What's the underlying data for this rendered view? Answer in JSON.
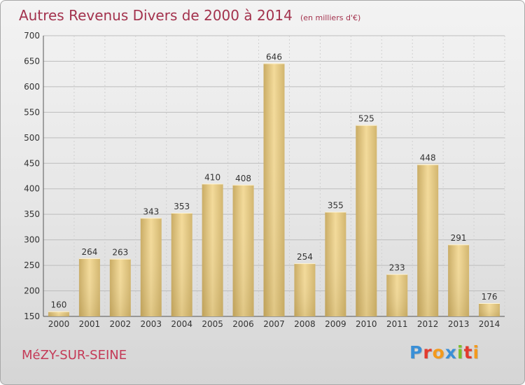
{
  "title": "Autres Revenus Divers de 2000 à 2014",
  "subtitle": "(en milliers d'€)",
  "commune": "MéZY-SUR-SEINE",
  "logo": {
    "letters": [
      "P",
      "r",
      "o",
      "x",
      "i",
      "t",
      "i"
    ],
    "colors": [
      "#3a8fd6",
      "#e23b2e",
      "#f39a1d",
      "#3a8fd6",
      "#7bbf2a",
      "#e23b2e",
      "#f39a1d"
    ]
  },
  "chart_data": {
    "type": "bar",
    "categories": [
      "2000",
      "2001",
      "2002",
      "2003",
      "2004",
      "2005",
      "2006",
      "2007",
      "2008",
      "2009",
      "2010",
      "2011",
      "2012",
      "2013",
      "2014"
    ],
    "values": [
      160,
      264,
      263,
      343,
      353,
      410,
      408,
      646,
      254,
      355,
      525,
      233,
      448,
      291,
      176
    ],
    "ylim": [
      150,
      700
    ],
    "yticks": [
      150,
      200,
      250,
      300,
      350,
      400,
      450,
      500,
      550,
      600,
      650,
      700
    ],
    "grid": true,
    "bar_color": "#efd38e"
  }
}
